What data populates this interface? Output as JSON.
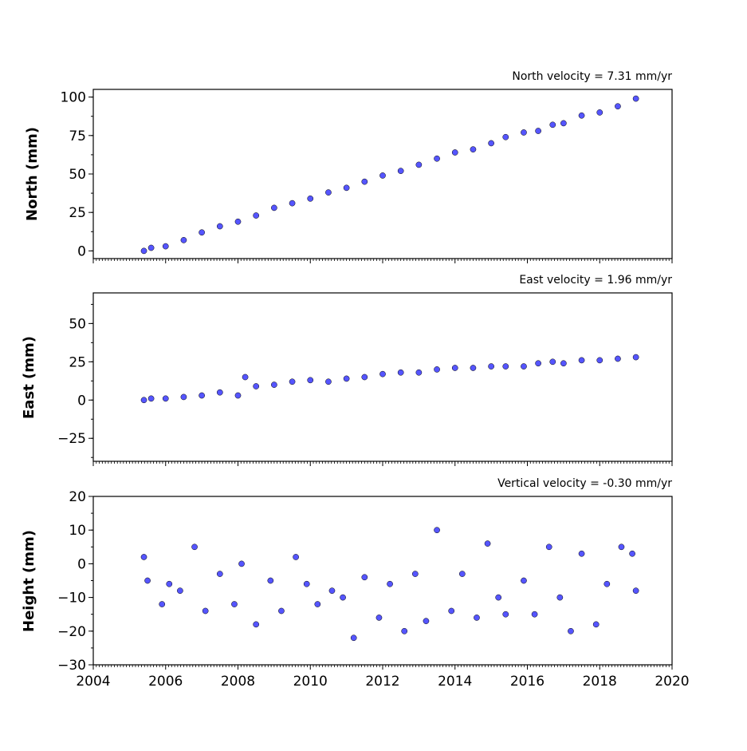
{
  "chart_data": [
    {
      "type": "scatter",
      "title": "North velocity = 7.31 mm/yr",
      "ylabel": "North (mm)",
      "xlim": [
        2004,
        2020
      ],
      "ylim": [
        -5,
        105
      ],
      "yticks": [
        0,
        25,
        50,
        75,
        100
      ],
      "xtick_labels_visible": false,
      "series": [
        {
          "x": [
            2005.4,
            2005.6,
            2006.0,
            2006.5,
            2007.0,
            2007.5,
            2008.0,
            2008.5,
            2009.0,
            2009.5,
            2010.0,
            2010.5,
            2011.0,
            2011.5,
            2012.0,
            2012.5,
            2013.0,
            2013.5,
            2014.0,
            2014.5,
            2015.0,
            2015.4,
            2015.9,
            2016.3,
            2016.7,
            2017.0,
            2017.5,
            2018.0,
            2018.5,
            2019.0
          ],
          "y": [
            0,
            2,
            3,
            7,
            12,
            16,
            19,
            23,
            28,
            31,
            34,
            38,
            41,
            45,
            49,
            52,
            56,
            60,
            64,
            66,
            70,
            74,
            77,
            78,
            82,
            83,
            88,
            90,
            94,
            99
          ]
        }
      ],
      "colors": {
        "marker": "#5555ff",
        "edge": "#000000"
      }
    },
    {
      "type": "scatter",
      "title": "East velocity = 1.96 mm/yr",
      "ylabel": "East (mm)",
      "xlim": [
        2004,
        2020
      ],
      "ylim": [
        -40,
        70
      ],
      "yticks": [
        -25,
        0,
        25,
        50
      ],
      "xtick_labels_visible": false,
      "series": [
        {
          "x": [
            2005.4,
            2005.6,
            2006.0,
            2006.5,
            2007.0,
            2007.5,
            2008.0,
            2008.2,
            2008.5,
            2009.0,
            2009.5,
            2010.0,
            2010.5,
            2011.0,
            2011.5,
            2012.0,
            2012.5,
            2013.0,
            2013.5,
            2014.0,
            2014.5,
            2015.0,
            2015.4,
            2015.9,
            2016.3,
            2016.7,
            2017.0,
            2017.5,
            2018.0,
            2018.5,
            2019.0
          ],
          "y": [
            0,
            1,
            1,
            2,
            3,
            5,
            3,
            15,
            9,
            10,
            12,
            13,
            12,
            14,
            15,
            17,
            18,
            18,
            20,
            21,
            21,
            22,
            22,
            22,
            24,
            25,
            24,
            26,
            26,
            27,
            28
          ]
        }
      ],
      "colors": {
        "marker": "#5555ff",
        "edge": "#000000"
      }
    },
    {
      "type": "scatter",
      "title": "Vertical velocity = -0.30 mm/yr",
      "ylabel": "Height (mm)",
      "xlim": [
        2004,
        2020
      ],
      "ylim": [
        -30,
        20
      ],
      "yticks": [
        -30,
        -20,
        -10,
        0,
        10,
        20
      ],
      "xticks": [
        2004,
        2006,
        2008,
        2010,
        2012,
        2014,
        2016,
        2018,
        2020
      ],
      "xtick_labels_visible": true,
      "series": [
        {
          "x": [
            2005.4,
            2005.5,
            2005.9,
            2006.1,
            2006.4,
            2006.8,
            2007.1,
            2007.5,
            2007.9,
            2008.1,
            2008.5,
            2008.9,
            2009.2,
            2009.6,
            2009.9,
            2010.2,
            2010.6,
            2010.9,
            2011.2,
            2011.5,
            2011.9,
            2012.2,
            2012.6,
            2012.9,
            2013.2,
            2013.5,
            2013.9,
            2014.2,
            2014.6,
            2014.9,
            2015.2,
            2015.4,
            2015.9,
            2016.2,
            2016.6,
            2016.9,
            2017.2,
            2017.5,
            2017.9,
            2018.2,
            2018.6,
            2018.9,
            2019.0
          ],
          "y": [
            2,
            -5,
            -12,
            -6,
            -8,
            5,
            -14,
            -3,
            -12,
            0,
            -18,
            -5,
            -14,
            2,
            -6,
            -12,
            -8,
            -10,
            -22,
            -4,
            -16,
            -6,
            -20,
            -3,
            -17,
            10,
            -14,
            -3,
            -16,
            6,
            -10,
            -15,
            -5,
            -15,
            5,
            -10,
            -20,
            3,
            -18,
            -6,
            5,
            3,
            -8
          ]
        }
      ],
      "colors": {
        "marker": "#5555ff",
        "edge": "#000000"
      }
    }
  ]
}
